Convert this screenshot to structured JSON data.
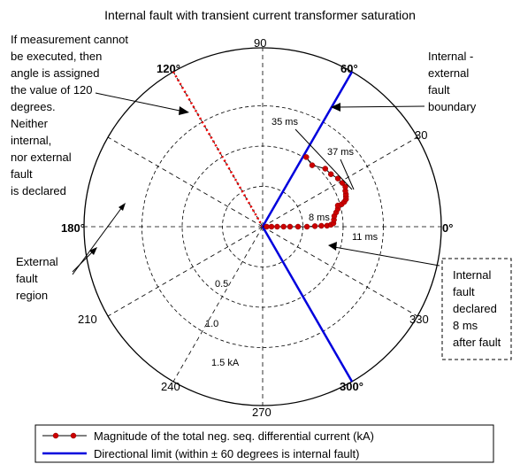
{
  "title": "Internal fault with transient current transformer saturation",
  "angle_labels": {
    "a0": "0°",
    "a30": "30",
    "a60": "60°",
    "a90": "90",
    "a120": "120°",
    "a180": "180°",
    "a210": "210",
    "a240": "240",
    "a270": "270",
    "a300": "300°",
    "a330": "330"
  },
  "ring_labels": {
    "r05": "0.5",
    "r10": "1.0",
    "r15": "1.5 kA"
  },
  "time_labels": {
    "t8": "8 ms",
    "t11": "11 ms",
    "t35": "35 ms",
    "t37": "37 ms"
  },
  "annotations": {
    "left_top": [
      "If measurement cannot",
      "be executed, then",
      "angle is assigned",
      "the value of 120",
      "degrees.",
      "Neither",
      "internal,",
      "nor external",
      "fault",
      "is declared"
    ],
    "right_top": [
      "Internal -",
      "external",
      "fault",
      "boundary"
    ],
    "left_mid": [
      "External",
      "fault",
      "region"
    ],
    "right_bottom": [
      "Internal",
      "fault",
      "declared",
      "8 ms",
      "after fault"
    ]
  },
  "legend": {
    "item1": "Magnitude of the total neg. seq. differential current  (kA)",
    "item2": "Directional limit (within ± 60 degrees is internal fault)"
  },
  "colors": {
    "trajectory": "#cc0000",
    "directional_limit": "#0000dd",
    "no_measure_line": "#ee0000"
  },
  "chart_data": {
    "type": "polar",
    "radial_unit": "kA",
    "rings": [
      0.5,
      1.0,
      1.5
    ],
    "spokes_deg": [
      0,
      30,
      60,
      90,
      120,
      150,
      180,
      210,
      240,
      270,
      300,
      330
    ],
    "directional_limit_deg": [
      60,
      -60
    ],
    "no_measure_angle_deg": 120,
    "trajectory": {
      "name": "Magnitude of the total neg. seq. differential current  (kA)",
      "points": [
        [
          0.05,
          0
        ],
        [
          0.11,
          0
        ],
        [
          0.18,
          0
        ],
        [
          0.26,
          0
        ],
        [
          0.34,
          0
        ],
        [
          0.44,
          0
        ],
        [
          0.55,
          0
        ],
        [
          0.65,
          0.6
        ],
        [
          0.73,
          0.9
        ],
        [
          0.8,
          0.9
        ],
        [
          0.85,
          1.6
        ],
        [
          0.88,
          2.8
        ],
        [
          0.89,
          5.5
        ],
        [
          0.9,
          8.4
        ],
        [
          0.93,
          11.0
        ],
        [
          0.96,
          13.3
        ],
        [
          0.97,
          15.7
        ],
        [
          1.02,
          15.8
        ],
        [
          1.06,
          16.9
        ],
        [
          1.09,
          18.2
        ],
        [
          1.1,
          19.8
        ],
        [
          1.11,
          21.3
        ],
        [
          1.12,
          23.4
        ],
        [
          1.14,
          25.7
        ],
        [
          1.13,
          28.7
        ],
        [
          1.11,
          32.6
        ],
        [
          1.07,
          37.5
        ],
        [
          1.06,
          42.8
        ],
        [
          0.98,
          51.1
        ],
        [
          1.02,
          57.9
        ]
      ]
    }
  }
}
